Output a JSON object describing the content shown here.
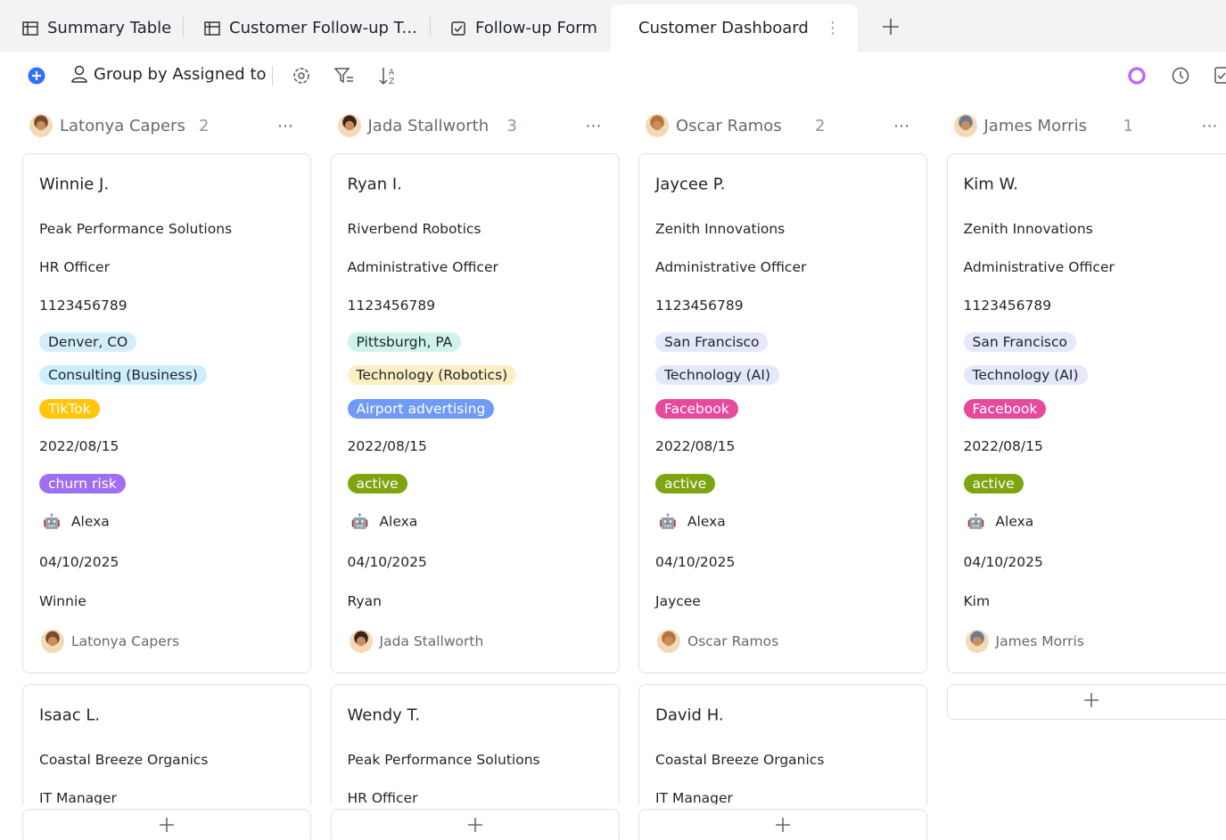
{
  "tabs": [
    "Summary Table",
    "Customer Follow-up T...",
    "Follow-up Form",
    "Customer Dashboard"
  ],
  "toolbar": {
    "group_by": "Group by Assigned to"
  },
  "columns": [
    {
      "name": "Latonya Capers",
      "count": 2,
      "cards": [
        {
          "name": "Winnie J.",
          "company": "Peak Performance Solutions",
          "title": "HR Officer",
          "phone": "1123456789",
          "location": {
            "text": "Denver, CO",
            "bg": "#d3eefa",
            "fg": "#1f2329"
          },
          "industry": {
            "text": "Consulting (Business)",
            "bg": "#cdeefc",
            "fg": "#1f2329"
          },
          "source": {
            "text": "TikTok",
            "bg": "#ffc60a",
            "fg": "#ffffff"
          },
          "date": "2022/08/15",
          "status": {
            "text": "churn risk",
            "bg": "#9f6ff1",
            "fg": "#ffffff"
          },
          "agent": "Alexa",
          "followup": "04/10/2025",
          "contact": "Winnie",
          "owner": "Latonya Capers"
        },
        {
          "name": "Isaac L.",
          "company": "Coastal Breeze Organics",
          "title": "IT Manager"
        }
      ]
    },
    {
      "name": "Jada Stallworth",
      "count": 3,
      "cards": [
        {
          "name": "Ryan I.",
          "company": "Riverbend Robotics",
          "title": "Administrative Officer",
          "phone": "1123456789",
          "location": {
            "text": "Pittsburgh, PA",
            "bg": "#cff3ec",
            "fg": "#1f2329"
          },
          "industry": {
            "text": "Technology (Robotics)",
            "bg": "#fcefc4",
            "fg": "#1f2329"
          },
          "source": {
            "text": "Airport advertising",
            "bg": "#6f9bf6",
            "fg": "#ffffff"
          },
          "date": "2022/08/15",
          "status": {
            "text": "active",
            "bg": "#7da510",
            "fg": "#ffffff"
          },
          "agent": "Alexa",
          "followup": "04/10/2025",
          "contact": "Ryan",
          "owner": "Jada Stallworth"
        },
        {
          "name": "Wendy T.",
          "company": "Peak Performance Solutions",
          "title": "HR Officer"
        }
      ]
    },
    {
      "name": "Oscar Ramos",
      "count": 2,
      "cards": [
        {
          "name": "Jaycee P.",
          "company": "Zenith Innovations",
          "title": "Administrative Officer",
          "phone": "1123456789",
          "location": {
            "text": "San Francisco",
            "bg": "#e3e8fb",
            "fg": "#1f2329"
          },
          "industry": {
            "text": "Technology (AI)",
            "bg": "#e3e8fb",
            "fg": "#1f2329"
          },
          "source": {
            "text": "Facebook",
            "bg": "#e54a9c",
            "fg": "#ffffff"
          },
          "date": "2022/08/15",
          "status": {
            "text": "active",
            "bg": "#7da510",
            "fg": "#ffffff"
          },
          "agent": "Alexa",
          "followup": "04/10/2025",
          "contact": "Jaycee",
          "owner": "Oscar Ramos"
        },
        {
          "name": "David H.",
          "company": "Coastal Breeze Organics",
          "title": "IT Manager"
        }
      ]
    },
    {
      "name": "James Morris",
      "count": 1,
      "cards": [
        {
          "name": "Kim W.",
          "company": "Zenith Innovations",
          "title": "Administrative Officer",
          "phone": "1123456789",
          "location": {
            "text": "San Francisco",
            "bg": "#e3e8fb",
            "fg": "#1f2329"
          },
          "industry": {
            "text": "Technology (AI)",
            "bg": "#e3e8fb",
            "fg": "#1f2329"
          },
          "source": {
            "text": "Facebook",
            "bg": "#e54a9c",
            "fg": "#ffffff"
          },
          "date": "2022/08/15",
          "status": {
            "text": "active",
            "bg": "#7da510",
            "fg": "#ffffff"
          },
          "agent": "Alexa",
          "followup": "04/10/2025",
          "contact": "Kim",
          "owner": "James Morris"
        }
      ]
    }
  ]
}
